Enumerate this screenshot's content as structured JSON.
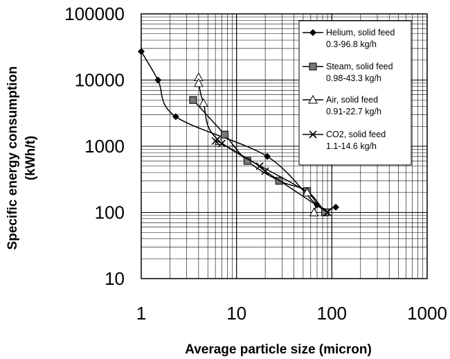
{
  "chart_data": {
    "type": "line",
    "xscale": "log",
    "yscale": "log",
    "xlim": [
      1,
      1000
    ],
    "ylim": [
      10,
      100000
    ],
    "grid": true,
    "xlabel": "Average particle size (micron)",
    "ylabel_line1": "Specific energy consumption",
    "ylabel_line2": "(kWh/t)",
    "x_ticks": [
      "1",
      "10",
      "100",
      "1000"
    ],
    "y_ticks": [
      "100000",
      "10000",
      "1000",
      "100",
      "10"
    ],
    "legend_position": "top-right",
    "series": [
      {
        "name": "Helium, solid feed",
        "range": "0.3-96.8 kg/h",
        "marker": "diamond",
        "x": [
          1.0,
          1.5,
          2.3,
          21.0,
          70.0,
          110.0
        ],
        "y": [
          27000,
          10000,
          2800,
          700,
          130,
          120
        ]
      },
      {
        "name": "Steam, solid feed",
        "range": "0.98-43.3 kg/h",
        "marker": "square",
        "x": [
          3.5,
          7.5,
          13.0,
          28.0,
          55.0,
          85.0
        ],
        "y": [
          5000,
          1500,
          600,
          300,
          210,
          100
        ]
      },
      {
        "name": "Air, solid feed",
        "range": "0.91-22.7 kg/h",
        "marker": "triangle",
        "x": [
          4.0,
          4.0,
          4.5,
          6.6,
          55.0,
          65.0
        ],
        "y": [
          11000,
          9000,
          4500,
          1200,
          200,
          100
        ]
      },
      {
        "name": "CO2, solid feed",
        "range": "1.1-14.6 kg/h",
        "marker": "x",
        "x": [
          6.0,
          7.0,
          17.5,
          20.0,
          90.0
        ],
        "y": [
          1200,
          1100,
          500,
          420,
          100
        ]
      }
    ]
  }
}
